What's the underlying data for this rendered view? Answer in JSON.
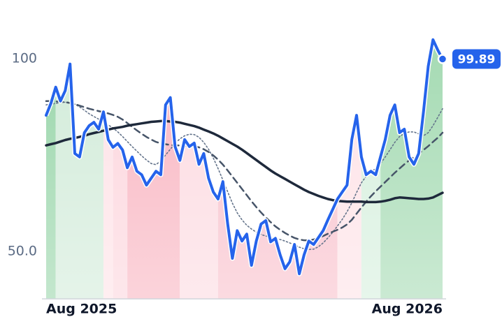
{
  "chart_data": {
    "type": "line",
    "categories": [
      "Aug 2025",
      null,
      null,
      null,
      null,
      null,
      null,
      null,
      null,
      null,
      null,
      null,
      null,
      null,
      null,
      null,
      null,
      null,
      null,
      null,
      null,
      null,
      null,
      null,
      null,
      null,
      null,
      null,
      null,
      null,
      null,
      null,
      null,
      null,
      null,
      null,
      null,
      null,
      null,
      null,
      null,
      null,
      null,
      null,
      null,
      null,
      null,
      null,
      null,
      null,
      null,
      null,
      null,
      null,
      null,
      null,
      null,
      null,
      null,
      null,
      null,
      null,
      null,
      null,
      null,
      null,
      null,
      null,
      null,
      null,
      null,
      null,
      null,
      null,
      null,
      null,
      null,
      null,
      null,
      null,
      null,
      null,
      null,
      "Aug 2026"
    ],
    "series": [
      {
        "color": "#2563eb",
        "style": "solid",
        "values": [
          85.3,
          88.4,
          92.6,
          89,
          91.7,
          98.6,
          75.4,
          74.5,
          80.8,
          82.6,
          83.5,
          81.7,
          86.2,
          79,
          77,
          78,
          76.3,
          71.7,
          74.5,
          70.8,
          69.9,
          67.2,
          69,
          70.8,
          69.9,
          88,
          89.9,
          77.2,
          73.6,
          79,
          77.2,
          78.1,
          72.6,
          75.4,
          69,
          65.4,
          63.6,
          68.1,
          57.2,
          48.2,
          55.4,
          52.7,
          54.5,
          46.4,
          52.7,
          57.1,
          58,
          52.5,
          53.4,
          49.1,
          45.5,
          47.3,
          51.8,
          44.2,
          49.1,
          52.7,
          51.8,
          53.6,
          55.4,
          58.2,
          60.9,
          63.6,
          65.4,
          67.2,
          79,
          85.3,
          74.5,
          69.9,
          70.8,
          69.9,
          74.5,
          79,
          85.3,
          88,
          80.8,
          81.7,
          74.5,
          72.6,
          75.4,
          86.2,
          98,
          104.9,
          102.2,
          99.89
        ]
      },
      {
        "color": "#1e293b",
        "style": "solid",
        "values": [
          77.5,
          77.8,
          78.1,
          78.5,
          78.9,
          79.2,
          79.4,
          79.7,
          80.0,
          80.4,
          80.7,
          81.0,
          81.3,
          81.6,
          81.9,
          82.1,
          82.3,
          82.6,
          82.8,
          83.0,
          83.2,
          83.4,
          83.6,
          83.7,
          83.8,
          83.8,
          83.7,
          83.6,
          83.4,
          83.1,
          82.8,
          82.5,
          82.1,
          81.6,
          81.1,
          80.6,
          80.0,
          79.3,
          78.6,
          77.9,
          77.2,
          76.4,
          75.5,
          74.6,
          73.7,
          72.8,
          71.9,
          71.0,
          70.2,
          69.5,
          68.8,
          68.1,
          67.4,
          66.7,
          66.0,
          65.4,
          64.9,
          64.4,
          64.0,
          63.6,
          63.3,
          63.1,
          63.0,
          62.9,
          62.9,
          62.9,
          62.9,
          62.8,
          62.8,
          62.8,
          62.9,
          63.1,
          63.4,
          63.8,
          64.0,
          63.9,
          63.8,
          63.7,
          63.6,
          63.6,
          63.7,
          64.0,
          64.6,
          65.2
        ]
      },
      {
        "color": "#475569",
        "style": "dashed",
        "values": [
          89.0,
          89.0,
          88.9,
          88.8,
          88.7,
          88.5,
          88.2,
          87.8,
          87.4,
          87.0,
          86.7,
          86.4,
          86.1,
          85.8,
          85.4,
          84.9,
          84.2,
          83.3,
          82.3,
          81.4,
          80.5,
          79.7,
          79.0,
          78.4,
          78.0,
          77.8,
          77.6,
          77.5,
          77.5,
          77.5,
          77.4,
          77.3,
          77.0,
          76.5,
          75.8,
          74.9,
          73.8,
          72.5,
          71.0,
          69.4,
          67.8,
          66.2,
          64.6,
          63.0,
          61.5,
          60.1,
          58.8,
          57.6,
          56.5,
          55.6,
          54.8,
          54.1,
          53.5,
          53.1,
          52.9,
          52.9,
          53.1,
          53.5,
          54.0,
          54.6,
          55.1,
          55.6,
          56.2,
          57.0,
          58.2,
          59.8,
          61.4,
          62.9,
          64.3,
          65.6,
          66.8,
          68.0,
          69.2,
          70.4,
          71.5,
          72.6,
          73.6,
          74.5,
          75.4,
          76.3,
          77.3,
          78.4,
          79.5,
          80.8
        ]
      },
      {
        "color": "#64748b",
        "style": "dotted",
        "values": [
          88.0,
          88.2,
          88.4,
          88.6,
          88.7,
          88.6,
          88.2,
          87.5,
          86.6,
          85.7,
          85.0,
          84.3,
          83.6,
          82.8,
          82.0,
          81.0,
          79.8,
          78.5,
          77.2,
          76.0,
          74.8,
          73.7,
          72.8,
          72.5,
          73.5,
          75.0,
          76.5,
          78.0,
          79.2,
          80.0,
          80.4,
          80.3,
          79.6,
          78.3,
          76.5,
          74.2,
          71.5,
          68.5,
          65.5,
          62.5,
          60.0,
          58.2,
          56.8,
          55.8,
          55.0,
          54.4,
          54.0,
          53.7,
          53.4,
          53.1,
          52.7,
          52.2,
          51.7,
          51.1,
          50.7,
          50.5,
          50.6,
          51.2,
          52.2,
          53.5,
          55.0,
          56.6,
          58.3,
          60.3,
          62.6,
          65.3,
          67.8,
          69.5,
          70.6,
          71.5,
          72.8,
          74.5,
          76.4,
          78.3,
          79.8,
          80.6,
          81.0,
          81.0,
          80.5,
          80.0,
          80.8,
          82.6,
          84.8,
          87.0
        ]
      }
    ],
    "bands": [
      {
        "from": 0,
        "to": 2,
        "color": "#93d3a5"
      },
      {
        "from": 2,
        "to": 12,
        "color": "#cfead7"
      },
      {
        "from": 12,
        "to": 14,
        "color": "#fde0e5"
      },
      {
        "from": 14,
        "to": 17,
        "color": "#fcd3db"
      },
      {
        "from": 17,
        "to": 28,
        "color": "#f8b0bd"
      },
      {
        "from": 28,
        "to": 36,
        "color": "#fcd8df"
      },
      {
        "from": 36,
        "to": 61,
        "color": "#f8bcc8"
      },
      {
        "from": 61,
        "to": 66,
        "color": "#fde0e5"
      },
      {
        "from": 66,
        "to": 70,
        "color": "#d3eedb"
      },
      {
        "from": 70,
        "to": 83,
        "color": "#9fd8ae"
      }
    ],
    "ylim": [
      37.7,
      115.2
    ],
    "yticks": [
      {
        "value": 50,
        "label": "50.0"
      },
      100
    ],
    "grid": false
  }
}
